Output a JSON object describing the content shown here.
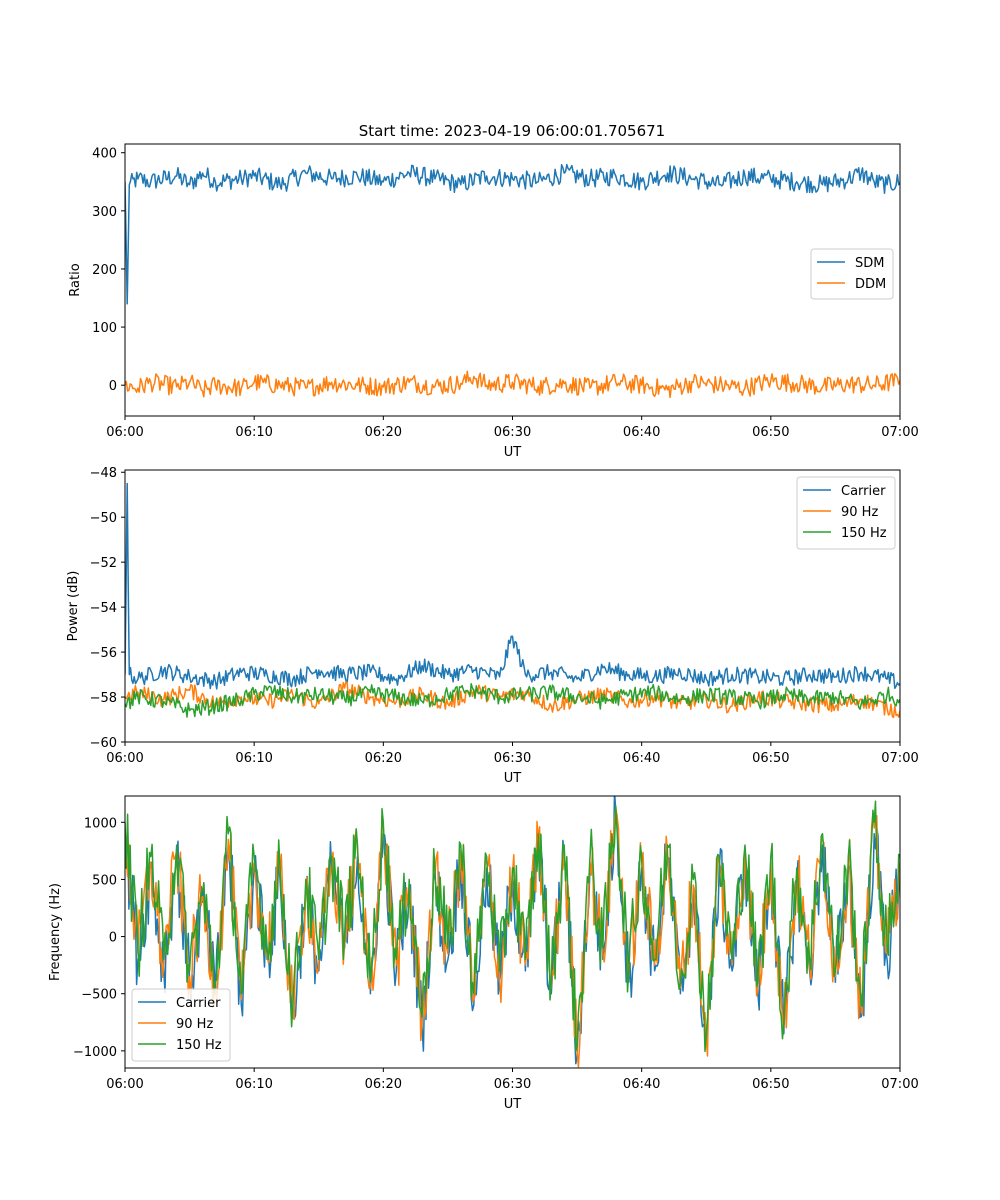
{
  "figure": {
    "title": "Start time: 2023-04-19 06:00:01.705671"
  },
  "colors": {
    "c0": "#1f77b4",
    "c1": "#ff7f0e",
    "c2": "#2ca02c",
    "axis": "#000000",
    "legend_border": "#cccccc"
  },
  "chart_data": [
    {
      "type": "line",
      "xlabel": "UT",
      "ylabel": "Ratio",
      "xlim": [
        "06:00",
        "07:00"
      ],
      "ylim": [
        -53,
        415
      ],
      "xticks": [
        "06:00",
        "06:10",
        "06:20",
        "06:30",
        "06:40",
        "06:50",
        "07:00"
      ],
      "yticks": [
        0,
        100,
        200,
        300,
        400
      ],
      "ytick_labels": [
        "0",
        "100",
        "200",
        "300",
        "400"
      ],
      "legend": "center-right",
      "series": [
        {
          "name": "SDM",
          "color": "#1f77b4",
          "x": [
            "06:00",
            "06:00:10",
            "06:00:20",
            "06:01",
            "06:02",
            "06:04",
            "06:05",
            "06:06",
            "06:07",
            "06:09",
            "06:10",
            "06:12",
            "06:14",
            "06:16",
            "06:18",
            "06:20",
            "06:22",
            "06:24",
            "06:26",
            "06:28",
            "06:30",
            "06:32",
            "06:34",
            "06:36",
            "06:38",
            "06:40",
            "06:42",
            "06:44",
            "06:46",
            "06:48",
            "06:50",
            "06:52",
            "06:54",
            "06:56",
            "06:57",
            "06:58",
            "06:59",
            "07:00"
          ],
          "y": [
            350,
            140,
            345,
            355,
            350,
            360,
            345,
            365,
            350,
            355,
            360,
            345,
            365,
            355,
            360,
            350,
            365,
            355,
            345,
            360,
            355,
            350,
            365,
            355,
            360,
            350,
            365,
            355,
            345,
            360,
            355,
            350,
            345,
            355,
            365,
            350,
            345,
            350
          ]
        },
        {
          "name": "DDM",
          "color": "#ff7f0e",
          "x": [
            "06:00",
            "06:01",
            "06:02",
            "06:04",
            "06:05",
            "06:06",
            "06:07",
            "06:09",
            "06:10",
            "06:12",
            "06:14",
            "06:16",
            "06:18",
            "06:20",
            "06:22",
            "06:24",
            "06:26",
            "06:27",
            "06:28",
            "06:30",
            "06:32",
            "06:34",
            "06:36",
            "06:38",
            "06:40",
            "06:42",
            "06:44",
            "06:46",
            "06:48",
            "06:50",
            "06:52",
            "06:54",
            "06:56",
            "06:58",
            "07:00"
          ],
          "y": [
            0,
            -5,
            5,
            -3,
            5,
            -10,
            0,
            -5,
            5,
            0,
            -5,
            5,
            0,
            -3,
            5,
            -2,
            3,
            15,
            0,
            5,
            -2,
            3,
            -5,
            5,
            0,
            -8,
            5,
            0,
            -5,
            8,
            3,
            -3,
            2,
            0,
            8
          ]
        }
      ]
    },
    {
      "type": "line",
      "xlabel": "UT",
      "ylabel": "Power (dB)",
      "xlim": [
        "06:00",
        "07:00"
      ],
      "ylim": [
        -60,
        -47.9
      ],
      "xticks": [
        "06:00",
        "06:10",
        "06:20",
        "06:30",
        "06:40",
        "06:50",
        "07:00"
      ],
      "yticks": [
        -60,
        -58,
        -56,
        -54,
        -52,
        -50,
        -48
      ],
      "ytick_labels": [
        "−60",
        "−58",
        "−56",
        "−54",
        "−52",
        "−50",
        "−48"
      ],
      "legend": "top-right",
      "series": [
        {
          "name": "Carrier",
          "color": "#1f77b4",
          "x": [
            "06:00",
            "06:00:10",
            "06:00:20",
            "06:01",
            "06:03",
            "06:05",
            "06:07",
            "06:09",
            "06:11",
            "06:13",
            "06:15",
            "06:17",
            "06:19",
            "06:21",
            "06:23",
            "06:25",
            "06:27",
            "06:29",
            "06:30",
            "06:31",
            "06:33",
            "06:35",
            "06:37",
            "06:39",
            "06:41",
            "06:43",
            "06:45",
            "06:47",
            "06:49",
            "06:51",
            "06:53",
            "06:55",
            "06:57",
            "06:59",
            "07:00"
          ],
          "y": [
            -57.0,
            -48.5,
            -57.0,
            -57.2,
            -56.8,
            -57.1,
            -57.3,
            -56.9,
            -57.0,
            -57.2,
            -56.8,
            -57.0,
            -56.9,
            -57.2,
            -56.6,
            -57.0,
            -56.8,
            -57.1,
            -55.3,
            -57.0,
            -56.9,
            -57.2,
            -56.7,
            -57.0,
            -57.1,
            -56.9,
            -57.2,
            -57.0,
            -57.1,
            -57.2,
            -57.0,
            -57.1,
            -56.9,
            -57.2,
            -57.4
          ]
        },
        {
          "name": "90 Hz",
          "color": "#ff7f0e",
          "x": [
            "06:00",
            "06:01",
            "06:03",
            "06:05",
            "06:07",
            "06:09",
            "06:11",
            "06:13",
            "06:15",
            "06:17",
            "06:19",
            "06:21",
            "06:23",
            "06:25",
            "06:27",
            "06:29",
            "06:31",
            "06:33",
            "06:35",
            "06:37",
            "06:39",
            "06:41",
            "06:43",
            "06:45",
            "06:47",
            "06:49",
            "06:51",
            "06:53",
            "06:55",
            "06:57",
            "06:59",
            "07:00"
          ],
          "y": [
            -58.0,
            -57.8,
            -58.1,
            -57.7,
            -58.3,
            -58.0,
            -58.2,
            -57.9,
            -58.3,
            -57.6,
            -58.0,
            -58.2,
            -57.9,
            -58.3,
            -57.7,
            -58.0,
            -57.8,
            -58.4,
            -58.1,
            -57.9,
            -58.2,
            -58.0,
            -58.3,
            -58.1,
            -58.4,
            -58.0,
            -58.2,
            -58.3,
            -58.4,
            -58.1,
            -58.5,
            -58.6
          ]
        },
        {
          "name": "150 Hz",
          "color": "#2ca02c",
          "x": [
            "06:00",
            "06:01",
            "06:03",
            "06:05",
            "06:07",
            "06:09",
            "06:11",
            "06:13",
            "06:15",
            "06:17",
            "06:19",
            "06:21",
            "06:23",
            "06:25",
            "06:27",
            "06:29",
            "06:31",
            "06:33",
            "06:35",
            "06:37",
            "06:39",
            "06:41",
            "06:43",
            "06:45",
            "06:47",
            "06:49",
            "06:51",
            "06:53",
            "06:55",
            "06:57",
            "06:59",
            "07:00"
          ],
          "y": [
            -58.3,
            -58.0,
            -58.2,
            -58.6,
            -58.4,
            -58.1,
            -57.7,
            -58.0,
            -57.9,
            -58.1,
            -57.8,
            -58.0,
            -58.2,
            -57.9,
            -57.7,
            -58.0,
            -57.9,
            -57.8,
            -58.0,
            -58.2,
            -57.9,
            -57.8,
            -58.1,
            -57.9,
            -58.0,
            -58.2,
            -57.9,
            -58.1,
            -58.0,
            -58.3,
            -57.9,
            -58.1
          ]
        }
      ]
    },
    {
      "type": "line",
      "xlabel": "UT",
      "ylabel": "Frequency (Hz)",
      "xlim": [
        "06:00",
        "07:00"
      ],
      "ylim": [
        -1150,
        1230
      ],
      "xticks": [
        "06:00",
        "06:10",
        "06:20",
        "06:30",
        "06:40",
        "06:50",
        "07:00"
      ],
      "yticks": [
        -1000,
        -500,
        0,
        500,
        1000
      ],
      "ytick_labels": [
        "−1000",
        "−500",
        "0",
        "500",
        "1000"
      ],
      "legend": "bottom-left",
      "series": [
        {
          "name": "Carrier",
          "color": "#1f77b4",
          "x": [
            "06:00",
            "06:01",
            "06:02",
            "06:03",
            "06:04",
            "06:05",
            "06:06",
            "06:07",
            "06:08",
            "06:09",
            "06:10",
            "06:11",
            "06:12",
            "06:13",
            "06:14",
            "06:15",
            "06:16",
            "06:17",
            "06:18",
            "06:19",
            "06:20",
            "06:21",
            "06:22",
            "06:23",
            "06:24",
            "06:25",
            "06:26",
            "06:27",
            "06:28",
            "06:29",
            "06:30",
            "06:31",
            "06:32",
            "06:33",
            "06:34",
            "06:35",
            "06:36",
            "06:37",
            "06:38",
            "06:39",
            "06:40",
            "06:41",
            "06:42",
            "06:43",
            "06:44",
            "06:45",
            "06:46",
            "06:47",
            "06:48",
            "06:49",
            "06:50",
            "06:51",
            "06:52",
            "06:53",
            "06:54",
            "06:55",
            "06:56",
            "06:57",
            "06:58",
            "06:59",
            "07:00"
          ],
          "y": [
            900,
            -200,
            600,
            -300,
            700,
            -400,
            300,
            -500,
            800,
            -600,
            600,
            -200,
            500,
            -700,
            400,
            -300,
            600,
            -100,
            700,
            -500,
            900,
            -300,
            400,
            -800,
            500,
            -200,
            700,
            -600,
            600,
            -400,
            500,
            -300,
            800,
            -500,
            700,
            -1050,
            600,
            -200,
            1100,
            -400,
            600,
            -300,
            700,
            -500,
            400,
            -950,
            600,
            -300,
            700,
            -500,
            600,
            -850,
            500,
            -300,
            800,
            -400,
            600,
            -700,
            900,
            -200,
            550
          ]
        },
        {
          "name": "90 Hz",
          "color": "#ff7f0e",
          "x": [
            "06:00",
            "06:01",
            "06:02",
            "06:03",
            "06:04",
            "06:05",
            "06:06",
            "06:07",
            "06:08",
            "06:09",
            "06:10",
            "06:11",
            "06:12",
            "06:13",
            "06:14",
            "06:15",
            "06:16",
            "06:17",
            "06:18",
            "06:19",
            "06:20",
            "06:21",
            "06:22",
            "06:23",
            "06:24",
            "06:25",
            "06:26",
            "06:27",
            "06:28",
            "06:29",
            "06:30",
            "06:31",
            "06:32",
            "06:33",
            "06:34",
            "06:35",
            "06:36",
            "06:37",
            "06:38",
            "06:39",
            "06:40",
            "06:41",
            "06:42",
            "06:43",
            "06:44",
            "06:45",
            "06:46",
            "06:47",
            "06:48",
            "06:49",
            "06:50",
            "06:51",
            "06:52",
            "06:53",
            "06:54",
            "06:55",
            "06:56",
            "06:57",
            "06:58",
            "06:59",
            "07:00"
          ],
          "y": [
            950,
            -150,
            650,
            -250,
            750,
            -350,
            350,
            -450,
            850,
            -550,
            650,
            -150,
            550,
            -650,
            450,
            -250,
            650,
            -50,
            750,
            -450,
            950,
            -250,
            450,
            -750,
            550,
            -150,
            750,
            -550,
            650,
            -350,
            550,
            -250,
            850,
            -450,
            750,
            -1000,
            650,
            -150,
            1120,
            -350,
            650,
            -250,
            750,
            -450,
            450,
            -900,
            650,
            -250,
            750,
            -450,
            650,
            -800,
            550,
            -250,
            850,
            -350,
            650,
            -650,
            950,
            -150,
            650
          ]
        },
        {
          "name": "150 Hz",
          "color": "#2ca02c",
          "x": [
            "06:00",
            "06:01",
            "06:02",
            "06:03",
            "06:04",
            "06:05",
            "06:06",
            "06:07",
            "06:08",
            "06:09",
            "06:10",
            "06:11",
            "06:12",
            "06:13",
            "06:14",
            "06:15",
            "06:16",
            "06:17",
            "06:18",
            "06:19",
            "06:20",
            "06:21",
            "06:22",
            "06:23",
            "06:24",
            "06:25",
            "06:26",
            "06:27",
            "06:28",
            "06:29",
            "06:30",
            "06:31",
            "06:32",
            "06:33",
            "06:34",
            "06:35",
            "06:36",
            "06:37",
            "06:38",
            "06:39",
            "06:40",
            "06:41",
            "06:42",
            "06:43",
            "06:44",
            "06:45",
            "06:46",
            "06:47",
            "06:48",
            "06:49",
            "06:50",
            "06:51",
            "06:52",
            "06:53",
            "06:54",
            "06:55",
            "06:56",
            "06:57",
            "06:58",
            "06:59",
            "07:00"
          ],
          "y": [
            1000,
            -100,
            700,
            -200,
            800,
            -300,
            400,
            -400,
            900,
            -500,
            700,
            -100,
            600,
            -600,
            500,
            -200,
            700,
            0,
            800,
            -400,
            1000,
            -200,
            500,
            -700,
            600,
            -100,
            800,
            -500,
            700,
            -300,
            600,
            -200,
            900,
            -400,
            800,
            -950,
            700,
            -100,
            1140,
            -300,
            700,
            -200,
            800,
            -400,
            500,
            -850,
            700,
            -200,
            800,
            -400,
            700,
            -750,
            600,
            -200,
            900,
            -300,
            700,
            -600,
            1000,
            -100,
            700
          ]
        }
      ]
    }
  ]
}
